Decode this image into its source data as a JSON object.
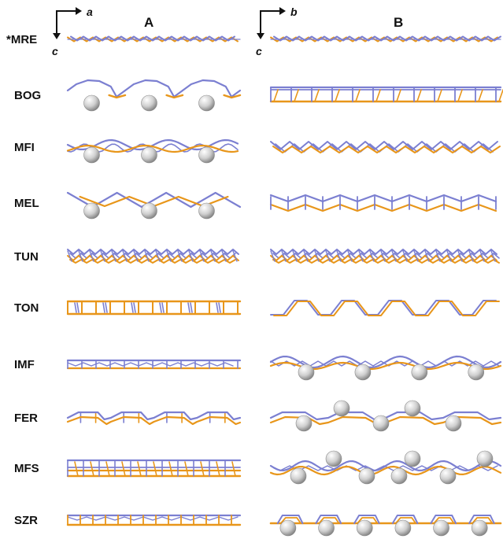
{
  "figure": {
    "columns": [
      {
        "id": "A",
        "label": "A",
        "axis_h": "a",
        "axis_v": "c"
      },
      {
        "id": "B",
        "label": "B",
        "axis_h": "b",
        "axis_v": "c"
      }
    ],
    "rows": [
      {
        "label": "*MRE",
        "a": {
          "style": "flat-chain",
          "spheres": 0
        },
        "b": {
          "style": "flat-chain",
          "spheres": 0
        }
      },
      {
        "label": "BOG",
        "a": {
          "style": "arches",
          "spheres": 3
        },
        "b": {
          "style": "ladder",
          "spheres": 0
        }
      },
      {
        "label": "MFI",
        "a": {
          "style": "wavy",
          "spheres": 3
        },
        "b": {
          "style": "wavy-flat",
          "spheres": 0
        }
      },
      {
        "label": "MEL",
        "a": {
          "style": "zigzag",
          "spheres": 3
        },
        "b": {
          "style": "ladder-wavy",
          "spheres": 0
        }
      },
      {
        "label": "TUN",
        "a": {
          "style": "dense",
          "spheres": 0
        },
        "b": {
          "style": "dense",
          "spheres": 0
        }
      },
      {
        "label": "TON",
        "a": {
          "style": "boxes",
          "spheres": 0
        },
        "b": {
          "style": "corrugated",
          "spheres": 0
        }
      },
      {
        "label": "IMF",
        "a": {
          "style": "ladder-thin",
          "spheres": 0
        },
        "b": {
          "style": "hills",
          "spheres": 4
        }
      },
      {
        "label": "FER",
        "a": {
          "style": "steps",
          "spheres": 0
        },
        "b": {
          "style": "steps-balls",
          "spheres": 5
        }
      },
      {
        "label": "MFS",
        "a": {
          "style": "boxes-double",
          "spheres": 0
        },
        "b": {
          "style": "wavy-balls",
          "spheres": 7
        }
      },
      {
        "label": "SZR",
        "a": {
          "style": "rail",
          "spheres": 0
        },
        "b": {
          "style": "bridges",
          "spheres": 6
        }
      }
    ],
    "colors": {
      "upper": "#7b7fd1",
      "lower": "#e8961a",
      "sphere_light": "#ffffff",
      "sphere_dark": "#8c8c8c"
    }
  }
}
